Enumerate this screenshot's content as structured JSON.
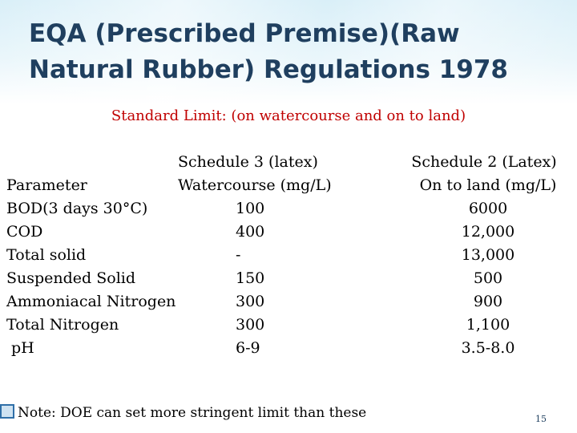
{
  "title": "EQA (Prescribed Premise)(Raw Natural Rubber) Regulations 1978",
  "subtitle": "Standard Limit: (on watercourse and on to land)",
  "table": {
    "headers": {
      "parameter": "Parameter",
      "schedule3_line1": "Schedule 3 (latex)",
      "schedule3_line2": "Watercourse (mg/L)",
      "schedule2_line1": "Schedule 2 (Latex)",
      "schedule2_line2": "On to land (mg/L)"
    },
    "rows": [
      {
        "parameter": "BOD(3 days 30°C)",
        "schedule3": "100",
        "schedule2": "6000"
      },
      {
        "parameter": "COD",
        "schedule3": "400",
        "schedule2": "12,000"
      },
      {
        "parameter": "Total solid",
        "schedule3": "-",
        "schedule2": "13,000"
      },
      {
        "parameter": "Suspended Solid",
        "schedule3": "150",
        "schedule2": "500"
      },
      {
        "parameter": "Ammoniacal Nitrogen",
        "schedule3": "300",
        "schedule2": "900"
      },
      {
        "parameter": "Total Nitrogen",
        "schedule3": "300",
        "schedule2": "1,100"
      },
      {
        "parameter": "pH",
        "schedule3": "6-9",
        "schedule2": "3.5-8.0"
      }
    ]
  },
  "note": {
    "icon": "checkbox-bullet-icon",
    "text": "Note: DOE can set more stringent limit than these"
  },
  "page_number": "15",
  "colors": {
    "title": "#1f3f5f",
    "subtitle": "#c00000",
    "background_top": "#d9eff8"
  }
}
